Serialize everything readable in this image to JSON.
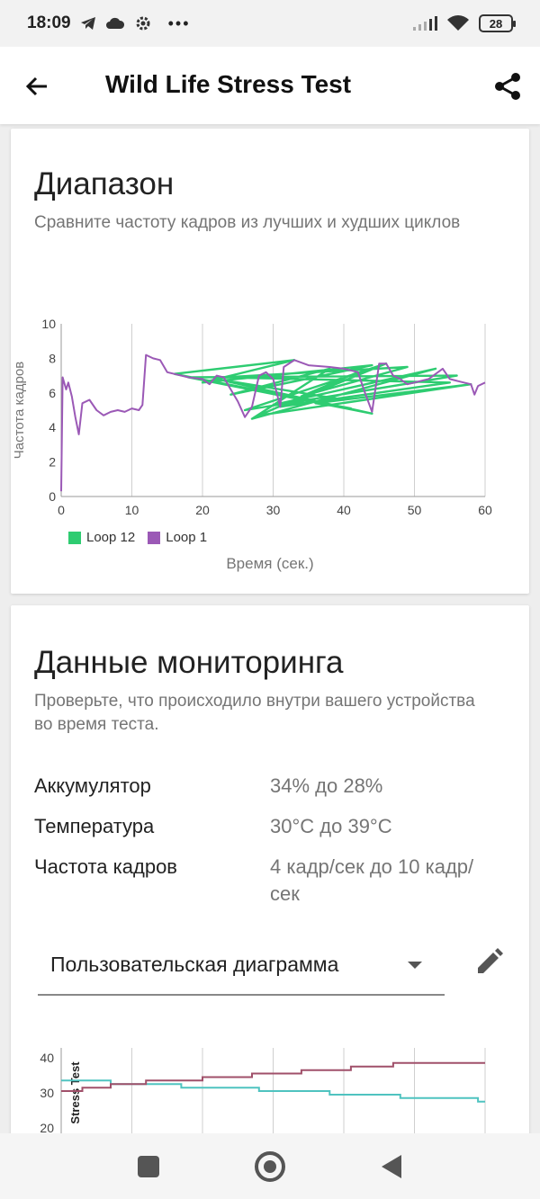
{
  "status": {
    "time": "18:09",
    "icons_left": [
      "telegram-icon",
      "cloud-icon",
      "gear-icon",
      "more-icon"
    ],
    "battery": "28"
  },
  "appbar": {
    "title": "Wild Life Stress Test"
  },
  "range_card": {
    "title": "Диапазон",
    "subtitle": "Сравните частоту кадров из лучших и худших циклов"
  },
  "chart_data": [
    {
      "type": "line",
      "ylabel": "Частота кадров",
      "xlabel": "Время (сек.)",
      "xlim": [
        0,
        60
      ],
      "ylim": [
        0,
        10
      ],
      "x_ticks": [
        "0",
        "10",
        "20",
        "30",
        "40",
        "50",
        "60"
      ],
      "y_ticks": [
        "0",
        "2",
        "4",
        "6",
        "8",
        "10"
      ],
      "grid": "vertical",
      "legend": "bottom-left",
      "series": [
        {
          "name": "Loop 12",
          "color": "#2ecc71",
          "points": [
            [
              16,
              7.1
            ],
            [
              33,
              7.9
            ],
            [
              20,
              6.6
            ],
            [
              44,
              7.6
            ],
            [
              24,
              5.9
            ],
            [
              38,
              7.4
            ],
            [
              27,
              4.5
            ],
            [
              53,
              7.4
            ],
            [
              30,
              5.3
            ],
            [
              40,
              5.6
            ],
            [
              22,
              6.8
            ],
            [
              44,
              4.8
            ],
            [
              18,
              6.9
            ],
            [
              56,
              7.0
            ],
            [
              26,
              5.0
            ],
            [
              46,
              7.7
            ],
            [
              31,
              5.2
            ],
            [
              55,
              6.6
            ],
            [
              23,
              6.9
            ],
            [
              49,
              7.5
            ],
            [
              34,
              5.8
            ],
            [
              42,
              7.2
            ],
            [
              28,
              4.7
            ],
            [
              58,
              6.5
            ],
            [
              36,
              5.4
            ],
            [
              41,
              5.1
            ],
            [
              16,
              7.1
            ]
          ]
        },
        {
          "name": "Loop 1",
          "color": "#9b59b6",
          "points": [
            [
              0,
              0.3
            ],
            [
              0.2,
              6.9
            ],
            [
              0.7,
              6.2
            ],
            [
              1,
              6.6
            ],
            [
              1.5,
              5.8
            ],
            [
              2,
              4.6
            ],
            [
              2.5,
              3.6
            ],
            [
              3,
              5.4
            ],
            [
              4,
              5.6
            ],
            [
              5,
              5.0
            ],
            [
              6,
              4.7
            ],
            [
              7,
              4.9
            ],
            [
              8,
              5.0
            ],
            [
              9,
              4.9
            ],
            [
              10,
              5.1
            ],
            [
              11,
              5.0
            ],
            [
              11.5,
              5.3
            ],
            [
              12,
              8.2
            ],
            [
              13,
              8.0
            ],
            [
              14,
              7.9
            ],
            [
              15,
              7.2
            ],
            [
              16,
              7.1
            ],
            [
              18,
              6.9
            ],
            [
              20,
              6.8
            ],
            [
              21,
              6.5
            ],
            [
              22,
              7.0
            ],
            [
              23,
              6.9
            ],
            [
              24,
              6.2
            ],
            [
              25,
              5.5
            ],
            [
              26,
              4.6
            ],
            [
              27,
              5.2
            ],
            [
              28,
              7.0
            ],
            [
              29,
              7.2
            ],
            [
              30,
              6.8
            ],
            [
              31,
              5.2
            ],
            [
              31.5,
              7.5
            ],
            [
              33,
              7.9
            ],
            [
              35,
              7.6
            ],
            [
              38,
              7.5
            ],
            [
              40,
              7.4
            ],
            [
              41,
              7.3
            ],
            [
              42,
              7.2
            ],
            [
              43,
              6.0
            ],
            [
              44,
              4.9
            ],
            [
              45,
              7.7
            ],
            [
              46,
              7.7
            ],
            [
              47,
              7.0
            ],
            [
              48,
              6.8
            ],
            [
              49,
              6.5
            ],
            [
              50,
              6.6
            ],
            [
              52,
              6.8
            ],
            [
              54,
              7.4
            ],
            [
              55,
              6.8
            ],
            [
              56,
              6.7
            ],
            [
              57,
              6.6
            ],
            [
              58,
              6.5
            ],
            [
              58.5,
              5.9
            ],
            [
              59,
              6.4
            ],
            [
              60,
              6.6
            ]
          ]
        }
      ]
    },
    {
      "type": "line",
      "ylabel": "Stress Test",
      "ylim": [
        20,
        40
      ],
      "xlim": [
        0,
        60
      ],
      "y_ticks": [
        "40",
        "30",
        "20"
      ],
      "grid": "vertical",
      "series": [
        {
          "color": "#4fc3c0",
          "points": [
            [
              0,
              33.5
            ],
            [
              7,
              33.5
            ],
            [
              7,
              32.5
            ],
            [
              17,
              32.5
            ],
            [
              17,
              31.5
            ],
            [
              28,
              31.5
            ],
            [
              28,
              30.5
            ],
            [
              38,
              30.5
            ],
            [
              38,
              29.5
            ],
            [
              48,
              29.5
            ],
            [
              48,
              28.5
            ],
            [
              59,
              28.5
            ],
            [
              59,
              27.5
            ],
            [
              60,
              27.5
            ]
          ]
        },
        {
          "color": "#a0506a",
          "points": [
            [
              0,
              30.5
            ],
            [
              3,
              30.5
            ],
            [
              3,
              31.5
            ],
            [
              7,
              31.5
            ],
            [
              7,
              32.5
            ],
            [
              12,
              32.5
            ],
            [
              12,
              33.5
            ],
            [
              20,
              33.5
            ],
            [
              20,
              34.5
            ],
            [
              27,
              34.5
            ],
            [
              27,
              35.5
            ],
            [
              34,
              35.5
            ],
            [
              34,
              36.5
            ],
            [
              41,
              36.5
            ],
            [
              41,
              37.5
            ],
            [
              47,
              37.5
            ],
            [
              47,
              38.5
            ],
            [
              60,
              38.5
            ]
          ]
        }
      ]
    }
  ],
  "monitor_card": {
    "title": "Данные мониторинга",
    "subtitle": "Проверьте, что происходило внутри вашего устройства во время теста.",
    "rows": [
      {
        "label": "Аккумулятор",
        "value": "34% до 28%"
      },
      {
        "label": "Температура",
        "value": "30°C до 39°C"
      },
      {
        "label": "Частота кадров",
        "value": "4 кадр/сек до 10 кадр/сек"
      }
    ],
    "select_label": "Пользовательская диаграмма"
  }
}
